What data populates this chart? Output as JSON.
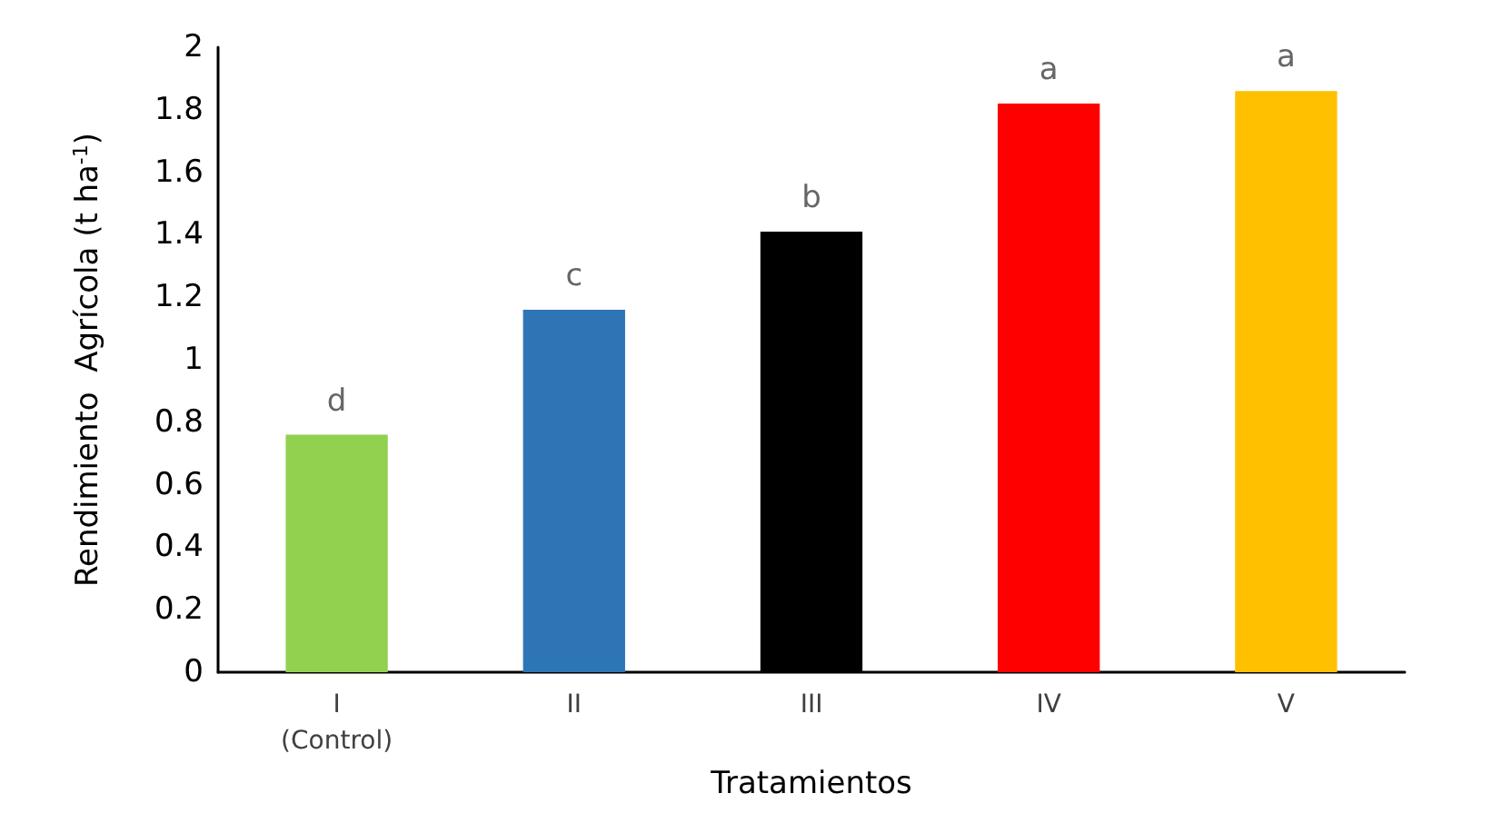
{
  "chart_data": {
    "type": "bar",
    "xlabel": "Tratamientos",
    "ylabel": "Rendimiento  Agrícola (t ha$^{-1}$)",
    "categories": [
      "I\n(Control)",
      "II",
      "III",
      "IV",
      "V"
    ],
    "values": [
      0.76,
      1.16,
      1.41,
      1.82,
      1.86
    ],
    "colors": [
      "#92d050",
      "#2e75b6",
      "#000000",
      "#ff0000",
      "#ffc000"
    ],
    "ylim": [
      0,
      2
    ],
    "yticks": [
      0,
      0.2,
      0.4,
      0.6,
      0.8,
      1,
      1.2,
      1.4,
      1.6,
      1.8,
      2
    ],
    "grid": false,
    "annotations": [
      {
        "text": "d",
        "x": "I\n(Control)",
        "y": 0.76
      },
      {
        "text": "c",
        "x": "II",
        "y": 1.16
      },
      {
        "text": "b",
        "x": "III",
        "y": 1.41
      },
      {
        "text": "a",
        "x": "IV",
        "y": 1.82
      },
      {
        "text": "a",
        "x": "V",
        "y": 1.86
      }
    ]
  }
}
